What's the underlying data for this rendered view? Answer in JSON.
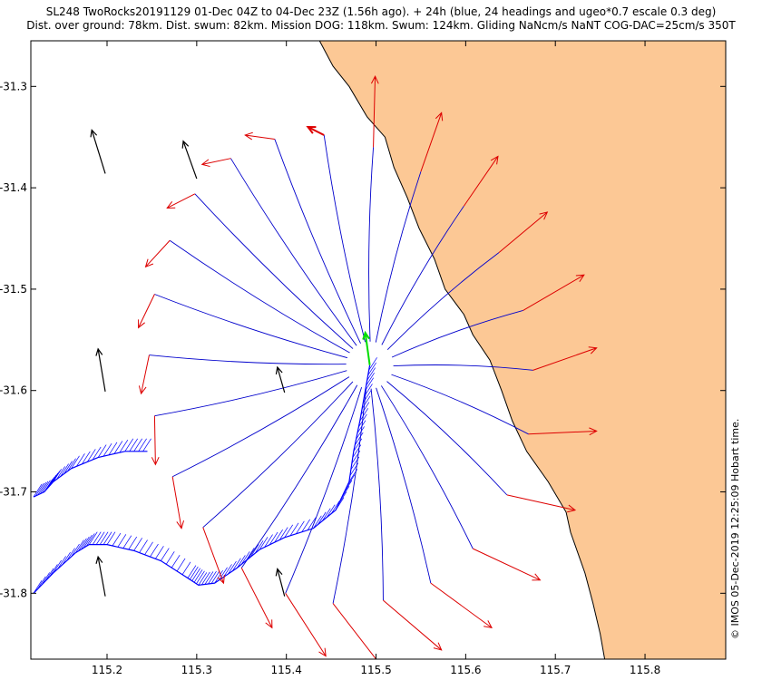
{
  "title": {
    "line1": "SL248 TwoRocks20191129 01-Dec 04Z to 04-Dec 23Z (1.56h ago). + 24h (blue, 24 headings and ugeo*0.7 escale 0.3 deg)",
    "line2": "Dist. over ground: 78km. Dist. swum: 82km. Mission DOG: 118km. Swum: 124km. Gliding NaNcm/s NaNT COG-DAC=25cm/s 350T"
  },
  "side_note": "© IMOS 05-Dec-2019 12:25:09 Hobart time.",
  "colors": {
    "land": "#fcc895",
    "forecast_track": "#0000cc",
    "heading_arrow": "#dd0000",
    "current_vector": "#000000",
    "glider_dac": "#0000ff",
    "glider_heading": "#00dd00"
  },
  "chart_data": {
    "type": "map",
    "x_ticks": [
      115.2,
      115.3,
      115.4,
      115.5,
      115.6,
      115.7,
      115.8
    ],
    "y_ticks": [
      -31.3,
      -31.4,
      -31.5,
      -31.6,
      -31.7,
      -31.8
    ],
    "xlim": [
      115.115,
      115.89
    ],
    "ylim": [
      -31.865,
      -31.255
    ],
    "glider_position": [
      115.493,
      -31.575
    ],
    "glider_heading_end": [
      115.488,
      -31.543
    ],
    "heading_fans": [
      {
        "track_end": [
          115.497,
          -31.36
        ],
        "arrow_end": [
          115.499,
          -31.29
        ]
      },
      {
        "track_end": [
          115.55,
          -31.384
        ],
        "arrow_end": [
          115.573,
          -31.326
        ]
      },
      {
        "track_end": [
          115.598,
          -31.418
        ],
        "arrow_end": [
          115.636,
          -31.369
        ]
      },
      {
        "track_end": [
          115.637,
          -31.464
        ],
        "arrow_end": [
          115.691,
          -31.424
        ]
      },
      {
        "track_end": [
          115.664,
          -31.521
        ],
        "arrow_end": [
          115.732,
          -31.486
        ]
      },
      {
        "track_end": [
          115.675,
          -31.58
        ],
        "arrow_end": [
          115.746,
          -31.558
        ]
      },
      {
        "track_end": [
          115.67,
          -31.643
        ],
        "arrow_end": [
          115.746,
          -31.64
        ]
      },
      {
        "track_end": [
          115.646,
          -31.703
        ],
        "arrow_end": [
          115.722,
          -31.718
        ]
      },
      {
        "track_end": [
          115.608,
          -31.756
        ],
        "arrow_end": [
          115.683,
          -31.787
        ]
      },
      {
        "track_end": [
          115.561,
          -31.79
        ],
        "arrow_end": [
          115.629,
          -31.834
        ]
      },
      {
        "track_end": [
          115.508,
          -31.807
        ],
        "arrow_end": [
          115.573,
          -31.856
        ]
      },
      {
        "track_end": [
          115.452,
          -31.81
        ],
        "arrow_end": [
          115.507,
          -31.873
        ]
      },
      {
        "track_end": [
          115.399,
          -31.8
        ],
        "arrow_end": [
          115.444,
          -31.862
        ]
      },
      {
        "track_end": [
          115.35,
          -31.775
        ],
        "arrow_end": [
          115.384,
          -31.834
        ]
      },
      {
        "track_end": [
          115.307,
          -31.735
        ],
        "arrow_end": [
          115.33,
          -31.79
        ]
      },
      {
        "track_end": [
          115.273,
          -31.685
        ],
        "arrow_end": [
          115.283,
          -31.736
        ]
      },
      {
        "track_end": [
          115.253,
          -31.625
        ],
        "arrow_end": [
          115.254,
          -31.673
        ]
      },
      {
        "track_end": [
          115.247,
          -31.565
        ],
        "arrow_end": [
          115.238,
          -31.603
        ]
      },
      {
        "track_end": [
          115.253,
          -31.505
        ],
        "arrow_end": [
          115.235,
          -31.538
        ]
      },
      {
        "track_end": [
          115.27,
          -31.452
        ],
        "arrow_end": [
          115.243,
          -31.478
        ]
      },
      {
        "track_end": [
          115.298,
          -31.406
        ],
        "arrow_end": [
          115.267,
          -31.42
        ]
      },
      {
        "track_end": [
          115.338,
          -31.371
        ],
        "arrow_end": [
          115.306,
          -31.377
        ]
      },
      {
        "track_end": [
          115.387,
          -31.352
        ],
        "arrow_end": [
          115.354,
          -31.348
        ]
      },
      {
        "track_end": [
          115.442,
          -31.348
        ],
        "arrow_end": [
          115.424,
          -31.34
        ]
      }
    ],
    "current_vectors": [
      {
        "start": [
          115.198,
          -31.386
        ],
        "end": [
          115.183,
          -31.343
        ]
      },
      {
        "start": [
          115.3,
          -31.391
        ],
        "end": [
          115.285,
          -31.354
        ]
      },
      {
        "start": [
          115.198,
          -31.601
        ],
        "end": [
          115.19,
          -31.559
        ]
      },
      {
        "start": [
          115.398,
          -31.602
        ],
        "end": [
          115.39,
          -31.577
        ]
      },
      {
        "start": [
          115.198,
          -31.803
        ],
        "end": [
          115.19,
          -31.764
        ]
      },
      {
        "start": [
          115.398,
          -31.803
        ],
        "end": [
          115.39,
          -31.776
        ]
      }
    ],
    "coastline": [
      [
        115.437,
        -31.255
      ],
      [
        115.452,
        -31.28
      ],
      [
        115.47,
        -31.3
      ],
      [
        115.49,
        -31.33
      ],
      [
        115.51,
        -31.35
      ],
      [
        115.52,
        -31.38
      ],
      [
        115.535,
        -31.41
      ],
      [
        115.548,
        -31.44
      ],
      [
        115.565,
        -31.47
      ],
      [
        115.577,
        -31.5
      ],
      [
        115.598,
        -31.525
      ],
      [
        115.608,
        -31.545
      ],
      [
        115.627,
        -31.57
      ],
      [
        115.64,
        -31.6
      ],
      [
        115.652,
        -31.63
      ],
      [
        115.668,
        -31.66
      ],
      [
        115.692,
        -31.69
      ],
      [
        115.712,
        -31.72
      ],
      [
        115.717,
        -31.74
      ],
      [
        115.733,
        -31.78
      ],
      [
        115.742,
        -31.81
      ],
      [
        115.75,
        -31.84
      ],
      [
        115.755,
        -31.865
      ]
    ],
    "dac_track": [
      [
        115.118,
        -31.8
      ],
      [
        115.14,
        -31.78
      ],
      [
        115.165,
        -31.76
      ],
      [
        115.18,
        -31.752
      ],
      [
        115.2,
        -31.752
      ],
      [
        115.23,
        -31.758
      ],
      [
        115.26,
        -31.768
      ],
      [
        115.29,
        -31.785
      ],
      [
        115.302,
        -31.792
      ],
      [
        115.32,
        -31.79
      ],
      [
        115.345,
        -31.775
      ],
      [
        115.37,
        -31.757
      ],
      [
        115.398,
        -31.745
      ],
      [
        115.43,
        -31.736
      ],
      [
        115.455,
        -31.718
      ],
      [
        115.47,
        -31.69
      ],
      [
        115.475,
        -31.66
      ],
      [
        115.482,
        -31.63
      ],
      [
        115.488,
        -31.6
      ],
      [
        115.493,
        -31.575
      ]
    ],
    "dac_track_west": [
      [
        115.118,
        -31.705
      ],
      [
        115.13,
        -31.7
      ],
      [
        115.14,
        -31.69
      ],
      [
        115.16,
        -31.677
      ],
      [
        115.19,
        -31.666
      ],
      [
        115.22,
        -31.66
      ],
      [
        115.245,
        -31.66
      ]
    ]
  }
}
